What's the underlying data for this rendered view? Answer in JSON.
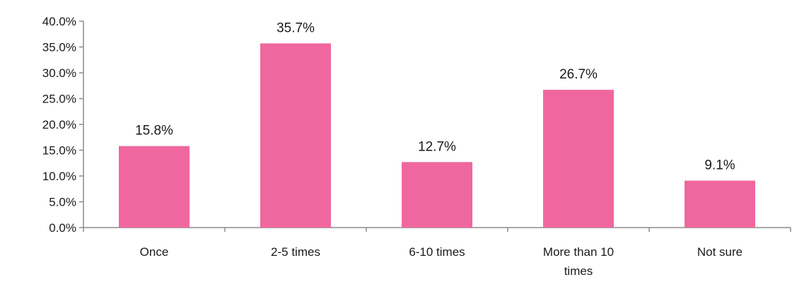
{
  "chart_data": {
    "type": "bar",
    "categories": [
      [
        "Once"
      ],
      [
        "2-5 times"
      ],
      [
        "6-10 times"
      ],
      [
        "More than 10",
        "times"
      ],
      [
        "Not sure"
      ]
    ],
    "values": [
      15.8,
      35.7,
      12.7,
      26.7,
      9.1
    ],
    "value_labels": [
      "15.8%",
      "35.7%",
      "12.7%",
      "26.7%",
      "9.1%"
    ],
    "yticks": [
      "0.0%",
      "5.0%",
      "10.0%",
      "15.0%",
      "20.0%",
      "25.0%",
      "30.0%",
      "35.0%",
      "40.0%"
    ],
    "ylim": [
      0,
      40
    ],
    "grid": false,
    "legend": "none",
    "bar_color": "#f0679f"
  }
}
